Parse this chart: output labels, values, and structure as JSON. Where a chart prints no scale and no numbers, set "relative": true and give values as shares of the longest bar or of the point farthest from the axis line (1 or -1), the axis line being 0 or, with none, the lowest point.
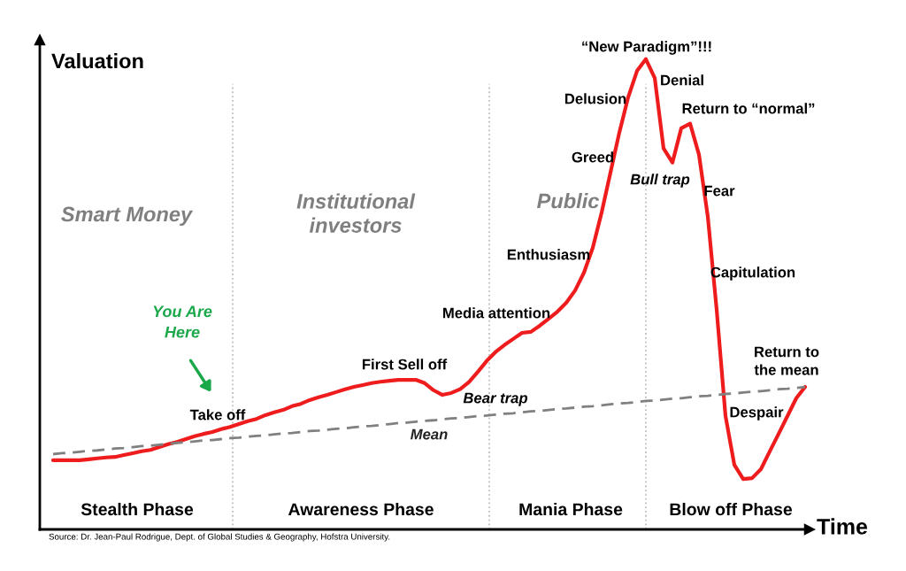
{
  "chart_data": {
    "type": "line",
    "relative": true,
    "xlabel": "Time",
    "ylabel": "Valuation",
    "categories": [
      null,
      null,
      null,
      null,
      null,
      null,
      null,
      null,
      null,
      null,
      null,
      null,
      null,
      null,
      null,
      null,
      null,
      null,
      null,
      null,
      null,
      null,
      null,
      null,
      null,
      null,
      null,
      null,
      null,
      null,
      null,
      null,
      null,
      null,
      null,
      null,
      null,
      null,
      null,
      null,
      null,
      null,
      null,
      null,
      null,
      null,
      null,
      null,
      null,
      null,
      null,
      null,
      null,
      null,
      null,
      null,
      null,
      null,
      null,
      null,
      null,
      null,
      null,
      null,
      null,
      null,
      null,
      null,
      null,
      null,
      null,
      null,
      null,
      null,
      null,
      null,
      null,
      null,
      null,
      null,
      null,
      null,
      null,
      null,
      null,
      null
    ],
    "series": [
      {
        "color": "#ee1c1c",
        "line_style": "solid",
        "values": [
          0.147,
          0.147,
          0.147,
          0.147,
          0.149,
          0.151,
          0.153,
          0.154,
          0.158,
          0.162,
          0.166,
          0.169,
          0.175,
          0.181,
          0.186,
          0.192,
          0.198,
          0.203,
          0.207,
          0.213,
          0.218,
          0.224,
          0.23,
          0.235,
          0.243,
          0.249,
          0.254,
          0.262,
          0.267,
          0.275,
          0.281,
          0.286,
          0.292,
          0.298,
          0.303,
          0.307,
          0.311,
          0.314,
          0.316,
          0.318,
          0.318,
          0.318,
          0.311,
          0.296,
          0.286,
          0.29,
          0.298,
          0.313,
          0.335,
          0.358,
          0.377,
          0.392,
          0.405,
          0.418,
          0.42,
          0.433,
          0.448,
          0.463,
          0.482,
          0.508,
          0.546,
          0.599,
          0.674,
          0.759,
          0.844,
          0.919,
          0.975,
          1.0,
          0.96,
          0.81,
          0.78,
          0.853,
          0.863,
          0.797,
          0.665,
          0.467,
          0.241,
          0.137,
          0.107,
          0.109,
          0.128,
          0.166,
          0.203,
          0.241,
          0.279,
          0.303
        ]
      },
      {
        "name": "Mean",
        "color": "#808080",
        "line_style": "dashed",
        "values": [
          0.16,
          0.162,
          0.163,
          0.165,
          0.167,
          0.168,
          0.17,
          0.172,
          0.173,
          0.175,
          0.177,
          0.178,
          0.18,
          0.182,
          0.184,
          0.185,
          0.187,
          0.189,
          0.19,
          0.192,
          0.194,
          0.195,
          0.197,
          0.199,
          0.2,
          0.202,
          0.204,
          0.205,
          0.207,
          0.209,
          0.21,
          0.212,
          0.214,
          0.215,
          0.217,
          0.219,
          0.22,
          0.222,
          0.224,
          0.226,
          0.227,
          0.229,
          0.231,
          0.232,
          0.234,
          0.236,
          0.237,
          0.239,
          0.241,
          0.242,
          0.244,
          0.246,
          0.247,
          0.249,
          0.251,
          0.252,
          0.254,
          0.256,
          0.257,
          0.259,
          0.261,
          0.262,
          0.264,
          0.266,
          0.268,
          0.269,
          0.271,
          0.273,
          0.274,
          0.276,
          0.278,
          0.279,
          0.281,
          0.283,
          0.284,
          0.286,
          0.288,
          0.289,
          0.291,
          0.293,
          0.294,
          0.296,
          0.298,
          0.299,
          0.301,
          0.303
        ]
      }
    ],
    "marker": "none",
    "annotations": [
      "Smart Money",
      "Institutional\ninvestors",
      "Public",
      "Stealth Phase",
      "Awareness Phase",
      "Mania Phase",
      "Blow off Phase",
      "Take off",
      "First Sell off",
      "Bear trap",
      "Media attention",
      "Enthusiasm",
      "Greed",
      "Delusion",
      "“New Paradigm”!!!",
      "Denial",
      "Return to “normal”",
      "Bull trap",
      "Fear",
      "Capitulation",
      "Despair",
      "Return to\nthe mean",
      "You Are\nHere",
      "Source: Dr. Jean-Paul Rodrigue, Dept. of Global Studies & Geography, Hofstra University."
    ]
  }
}
